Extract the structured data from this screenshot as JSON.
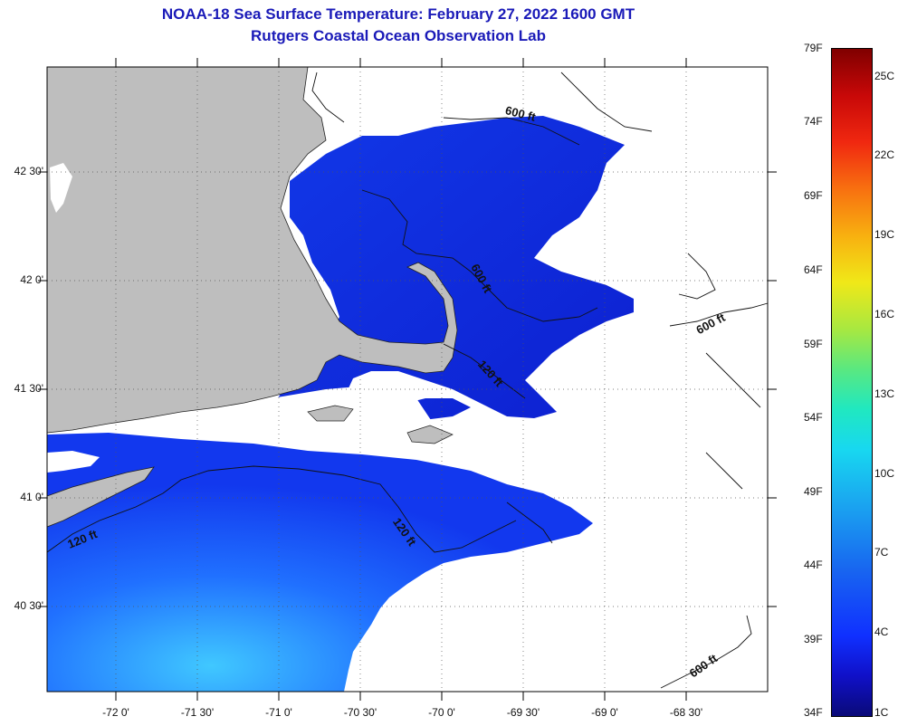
{
  "title": {
    "line1": "NOAA-18 Sea Surface Temperature:  February 27, 2022 1600 GMT",
    "line2": "Rutgers Coastal Ocean Observation Lab"
  },
  "lat_labels": [
    "42 30'",
    "42 0'",
    "41 30'",
    "41 0'",
    "40 30'"
  ],
  "lon_labels": [
    "-72 0'",
    "-71 30'",
    "-71 0'",
    "-70 30'",
    "-70 0'",
    "-69 30'",
    "-69 0'",
    "-68 30'"
  ],
  "depth_labels": [
    "600 ft",
    "600 ft",
    "600 ft",
    "600 ft",
    "120 ft",
    "120 ft",
    "120 ft"
  ],
  "colorbar": {
    "fahrenheit": [
      "79F",
      "74F",
      "69F",
      "64F",
      "59F",
      "54F",
      "49F",
      "44F",
      "39F",
      "34F"
    ],
    "celsius": [
      "25C",
      "22C",
      "19C",
      "16C",
      "13C",
      "10C",
      "7C",
      "4C",
      "1C"
    ]
  },
  "colors": {
    "title": "#1a1ab8",
    "land": "#bebebe",
    "cloud": "#ffffff",
    "sst_cold": "#1030f0",
    "sst_warm": "#30a0ff"
  }
}
